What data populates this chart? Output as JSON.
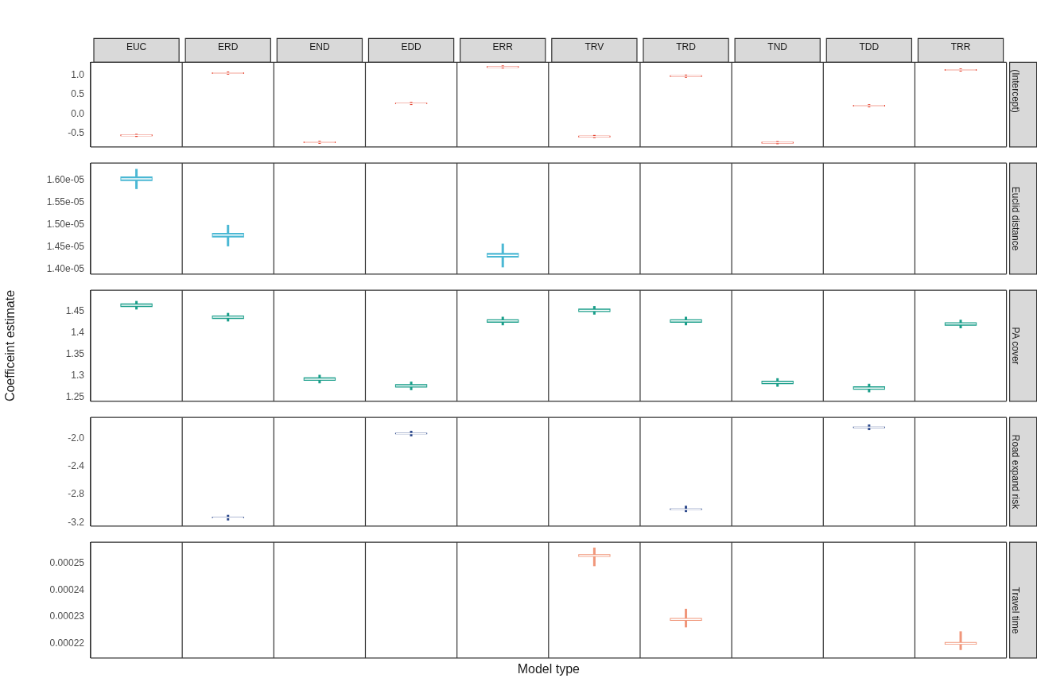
{
  "chart_data": [
    {
      "type": "box",
      "title": "(Intercept)",
      "categories": [
        "EUC",
        "ERD",
        "END",
        "EDD",
        "ERR",
        "TRV",
        "TRD",
        "TND",
        "TDD",
        "TRR"
      ],
      "ylim": [
        -0.86,
        1.34
      ],
      "yticks": [
        {
          "value": -0.5,
          "label": "-0.5"
        },
        {
          "value": 0,
          "label": "0.0"
        },
        {
          "value": 0.5,
          "label": "0.5"
        },
        {
          "value": 1,
          "label": "1.0"
        }
      ],
      "series": [
        {
          "color": "#e5432f",
          "boxes": [
            {
              "low": -0.6,
              "q1": -0.58,
              "median": -0.56,
              "q3": -0.54,
              "high": -0.52
            },
            {
              "low": 1.02,
              "q1": 1.04,
              "median": 1.06,
              "q3": 1.08,
              "high": 1.1
            },
            {
              "low": -0.78,
              "q1": -0.76,
              "median": -0.74,
              "q3": -0.72,
              "high": -0.7
            },
            {
              "low": 0.23,
              "q1": 0.25,
              "median": 0.27,
              "q3": 0.29,
              "high": 0.31
            },
            {
              "low": 1.18,
              "q1": 1.2,
              "median": 1.22,
              "q3": 1.24,
              "high": 1.26
            },
            {
              "low": -0.63,
              "q1": -0.61,
              "median": -0.59,
              "q3": -0.57,
              "high": -0.55
            },
            {
              "low": 0.94,
              "q1": 0.96,
              "median": 0.98,
              "q3": 1.0,
              "high": 1.02
            },
            {
              "low": -0.79,
              "q1": -0.77,
              "median": -0.75,
              "q3": -0.73,
              "high": -0.71
            },
            {
              "low": 0.17,
              "q1": 0.19,
              "median": 0.21,
              "q3": 0.23,
              "high": 0.25
            },
            {
              "low": 1.1,
              "q1": 1.12,
              "median": 1.14,
              "q3": 1.16,
              "high": 1.18
            }
          ]
        }
      ]
    },
    {
      "type": "box",
      "title": "Euclid distance",
      "categories": [
        null,
        null,
        null,
        null,
        null,
        null,
        null,
        null,
        null,
        null
      ],
      "tick_labels": "y",
      "ylim": [
        1.39e-05,
        1.638e-05
      ],
      "yticks": [
        {
          "value": 1.4e-05,
          "label": "1.40e-05"
        },
        {
          "value": 1.45e-05,
          "label": "1.45e-05"
        },
        {
          "value": 1.5e-05,
          "label": "1.50e-05"
        },
        {
          "value": 1.55e-05,
          "label": "1.55e-05"
        },
        {
          "value": 1.6e-05,
          "label": "1.60e-05"
        }
      ],
      "series": [
        {
          "color": "#4bb8d4",
          "boxes": [
            {
              "low": 1.58e-05,
              "q1": 1.598e-05,
              "median": 1.603e-05,
              "q3": 1.608e-05,
              "high": 1.625e-05
            },
            {
              "low": 1.452e-05,
              "q1": 1.472e-05,
              "median": 1.477e-05,
              "q3": 1.482e-05,
              "high": 1.5e-05
            },
            null,
            null,
            {
              "low": 1.405e-05,
              "q1": 1.427e-05,
              "median": 1.432e-05,
              "q3": 1.437e-05,
              "high": 1.458e-05
            },
            null,
            null,
            null,
            null,
            null
          ]
        }
      ]
    },
    {
      "type": "box",
      "title": "PA cover",
      "categories": [
        null,
        null,
        null,
        null,
        null,
        null,
        null,
        null,
        null,
        null
      ],
      "tick_labels": "y",
      "ylabel": "Coefficeint estimate",
      "ylim": [
        1.24,
        1.5
      ],
      "yticks": [
        1.25,
        1.3,
        1.35,
        1.4,
        1.45
      ],
      "series": [
        {
          "color": "#1a9e8a",
          "boxes": [
            {
              "low": 1.455,
              "q1": 1.461,
              "median": 1.465,
              "q3": 1.469,
              "high": 1.475
            },
            {
              "low": 1.427,
              "q1": 1.433,
              "median": 1.437,
              "q3": 1.441,
              "high": 1.447
            },
            {
              "low": 1.282,
              "q1": 1.288,
              "median": 1.292,
              "q3": 1.296,
              "high": 1.302
            },
            {
              "low": 1.266,
              "q1": 1.272,
              "median": 1.276,
              "q3": 1.28,
              "high": 1.286
            },
            {
              "low": 1.418,
              "q1": 1.424,
              "median": 1.428,
              "q3": 1.432,
              "high": 1.438
            },
            {
              "low": 1.443,
              "q1": 1.449,
              "median": 1.453,
              "q3": 1.457,
              "high": 1.463
            },
            {
              "low": 1.418,
              "q1": 1.424,
              "median": 1.428,
              "q3": 1.432,
              "high": 1.438
            },
            {
              "low": 1.274,
              "q1": 1.28,
              "median": 1.284,
              "q3": 1.288,
              "high": 1.294
            },
            {
              "low": 1.261,
              "q1": 1.267,
              "median": 1.271,
              "q3": 1.275,
              "high": 1.281
            },
            {
              "low": 1.411,
              "q1": 1.417,
              "median": 1.421,
              "q3": 1.425,
              "high": 1.431
            }
          ]
        }
      ]
    },
    {
      "type": "box",
      "title": "Road expand risk",
      "categories": [
        null,
        null,
        null,
        null,
        null,
        null,
        null,
        null,
        null,
        null
      ],
      "tick_labels": "y",
      "ylim": [
        -3.25,
        -1.7
      ],
      "yticks": [
        {
          "value": -3.2,
          "label": "-3.2"
        },
        {
          "value": -2.8,
          "label": "-2.8"
        },
        {
          "value": -2.4,
          "label": "-2.4"
        },
        {
          "value": -2.0,
          "label": "-2.0"
        }
      ],
      "series": [
        {
          "color": "#2e4a8c",
          "boxes": [
            null,
            {
              "low": -3.17,
              "q1": -3.14,
              "median": -3.13,
              "q3": -3.12,
              "high": -3.09
            },
            null,
            {
              "low": -1.97,
              "q1": -1.94,
              "median": -1.93,
              "q3": -1.92,
              "high": -1.89
            },
            null,
            null,
            {
              "low": -3.05,
              "q1": -3.02,
              "median": -3.01,
              "q3": -3.0,
              "high": -2.96
            },
            null,
            {
              "low": -1.88,
              "q1": -1.85,
              "median": -1.84,
              "q3": -1.83,
              "high": -1.8
            },
            null
          ]
        }
      ]
    },
    {
      "type": "box",
      "title": "Travel time",
      "categories": [
        null,
        null,
        null,
        null,
        null,
        null,
        null,
        null,
        null,
        null
      ],
      "tick_labels": "y",
      "xlabel": "Model type",
      "ylim": [
        0.0002145,
        0.000258
      ],
      "yticks": [
        0.00022,
        0.00023,
        0.00024,
        0.00025
      ],
      "series": [
        {
          "color": "#f0967a",
          "boxes": [
            null,
            null,
            null,
            null,
            null,
            {
              "low": 0.000249,
              "q1": 0.0002525,
              "median": 0.000253,
              "q3": 0.0002535,
              "high": 0.000256
            },
            {
              "low": 0.000226,
              "q1": 0.0002285,
              "median": 0.000229,
              "q3": 0.0002295,
              "high": 0.000233
            },
            null,
            null,
            {
              "low": 0.0002175,
              "q1": 0.0002195,
              "median": 0.00022,
              "q3": 0.0002205,
              "high": 0.0002245
            }
          ]
        }
      ]
    }
  ]
}
